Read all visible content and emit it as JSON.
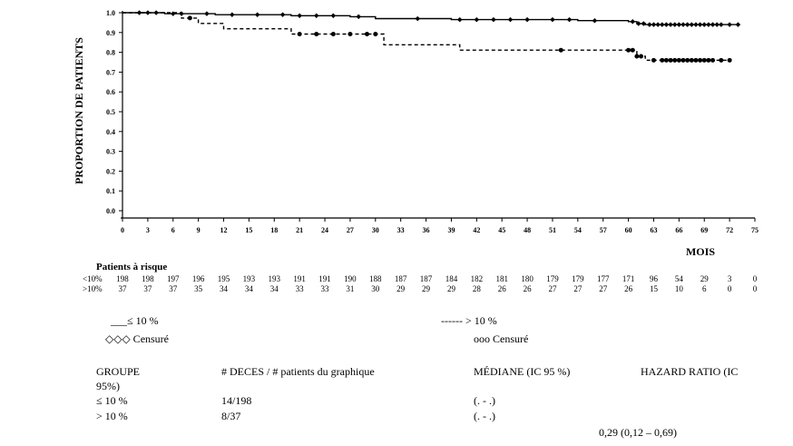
{
  "chart_data": {
    "type": "line",
    "ylabel": "PROPORTION DE PATIENTS",
    "xlabel": "MOIS",
    "xlim": [
      0,
      75
    ],
    "ylim": [
      0.0,
      1.0
    ],
    "x_ticks": [
      "0",
      "3",
      "6",
      "9",
      "12",
      "15",
      "18",
      "21",
      "24",
      "27",
      "30",
      "33",
      "36",
      "39",
      "42",
      "45",
      "48",
      "51",
      "54",
      "57",
      "60",
      "63",
      "66",
      "69",
      "72",
      "75"
    ],
    "y_ticks": [
      "0.0",
      "0.1",
      "0.2",
      "0.3",
      "0.4",
      "0.5",
      "0.6",
      "0.7",
      "0.8",
      "0.9",
      "1.0"
    ],
    "grid": false,
    "series": [
      {
        "name": "≤ 10 %",
        "style": "solid",
        "steps": [
          [
            0,
            1.0
          ],
          [
            5,
            1.0
          ],
          [
            5,
            0.995
          ],
          [
            11,
            0.995
          ],
          [
            11,
            0.99
          ],
          [
            20,
            0.99
          ],
          [
            20,
            0.985
          ],
          [
            27,
            0.985
          ],
          [
            27,
            0.98
          ],
          [
            30,
            0.98
          ],
          [
            30,
            0.97
          ],
          [
            39,
            0.97
          ],
          [
            39,
            0.965
          ],
          [
            54,
            0.965
          ],
          [
            54,
            0.96
          ],
          [
            60,
            0.96
          ],
          [
            60,
            0.955
          ],
          [
            61,
            0.955
          ],
          [
            61,
            0.945
          ],
          [
            62,
            0.945
          ],
          [
            62,
            0.94
          ],
          [
            73,
            0.94
          ]
        ],
        "censored": [
          2,
          3,
          4,
          6,
          7,
          10,
          13,
          16,
          19,
          21,
          23,
          25,
          28,
          35,
          40,
          42,
          44,
          46,
          48,
          51,
          53,
          56,
          60.5,
          61.2,
          61.8,
          62.5,
          63,
          63.5,
          64,
          64.5,
          65,
          65.5,
          66,
          66.5,
          67,
          67.5,
          68,
          68.5,
          69,
          69.5,
          70,
          70.5,
          71,
          72,
          73
        ]
      },
      {
        "name": "> 10 %",
        "style": "dashed",
        "steps": [
          [
            0,
            1.0
          ],
          [
            7,
            1.0
          ],
          [
            7,
            0.973
          ],
          [
            9,
            0.973
          ],
          [
            9,
            0.946
          ],
          [
            12,
            0.946
          ],
          [
            12,
            0.919
          ],
          [
            20,
            0.919
          ],
          [
            20,
            0.892
          ],
          [
            31,
            0.892
          ],
          [
            31,
            0.838
          ],
          [
            40,
            0.838
          ],
          [
            40,
            0.811
          ],
          [
            61,
            0.811
          ],
          [
            61,
            0.78
          ],
          [
            62,
            0.78
          ],
          [
            62,
            0.76
          ],
          [
            72,
            0.76
          ]
        ],
        "censored": [
          8,
          21,
          23,
          25,
          27,
          29,
          30,
          52,
          60,
          60.5,
          61,
          61.5,
          63,
          64,
          64.5,
          65,
          65.5,
          66,
          66.5,
          67,
          67.5,
          68,
          68.5,
          69,
          69.5,
          70,
          71,
          72
        ]
      }
    ]
  },
  "risk": {
    "title": "Patients à risque",
    "row1_label": "<10%",
    "row2_label": ">10%",
    "row1": [
      "198",
      "198",
      "197",
      "196",
      "195",
      "193",
      "193",
      "191",
      "191",
      "190",
      "188",
      "187",
      "187",
      "184",
      "182",
      "181",
      "180",
      "179",
      "179",
      "177",
      "171",
      "96",
      "54",
      "29",
      "3",
      "0"
    ],
    "row2": [
      "37",
      "37",
      "37",
      "35",
      "34",
      "34",
      "34",
      "33",
      "33",
      "31",
      "30",
      "29",
      "29",
      "29",
      "28",
      "26",
      "26",
      "27",
      "27",
      "27",
      "26",
      "15",
      "10",
      "6",
      "0",
      "0"
    ]
  },
  "legend": {
    "solid_label": "___≤ 10 %",
    "dashed_label": "------ > 10 %",
    "solid_censor": "◇◇◇ Censuré",
    "dashed_censor": "ooo Censuré"
  },
  "table": {
    "headers": [
      "GROUPE",
      "# DECES / # patients du graphique",
      "MÉDIANE (IC 95 %)",
      "HAZARD RATIO (IC"
    ],
    "header_wrap": "95%)",
    "rows": [
      [
        "≤ 10 %",
        "14/198",
        "(. - .)"
      ],
      [
        "> 10 %",
        "8/37",
        "(. - .)"
      ]
    ],
    "hazard": "0,29 (0,12 – 0,69)"
  }
}
